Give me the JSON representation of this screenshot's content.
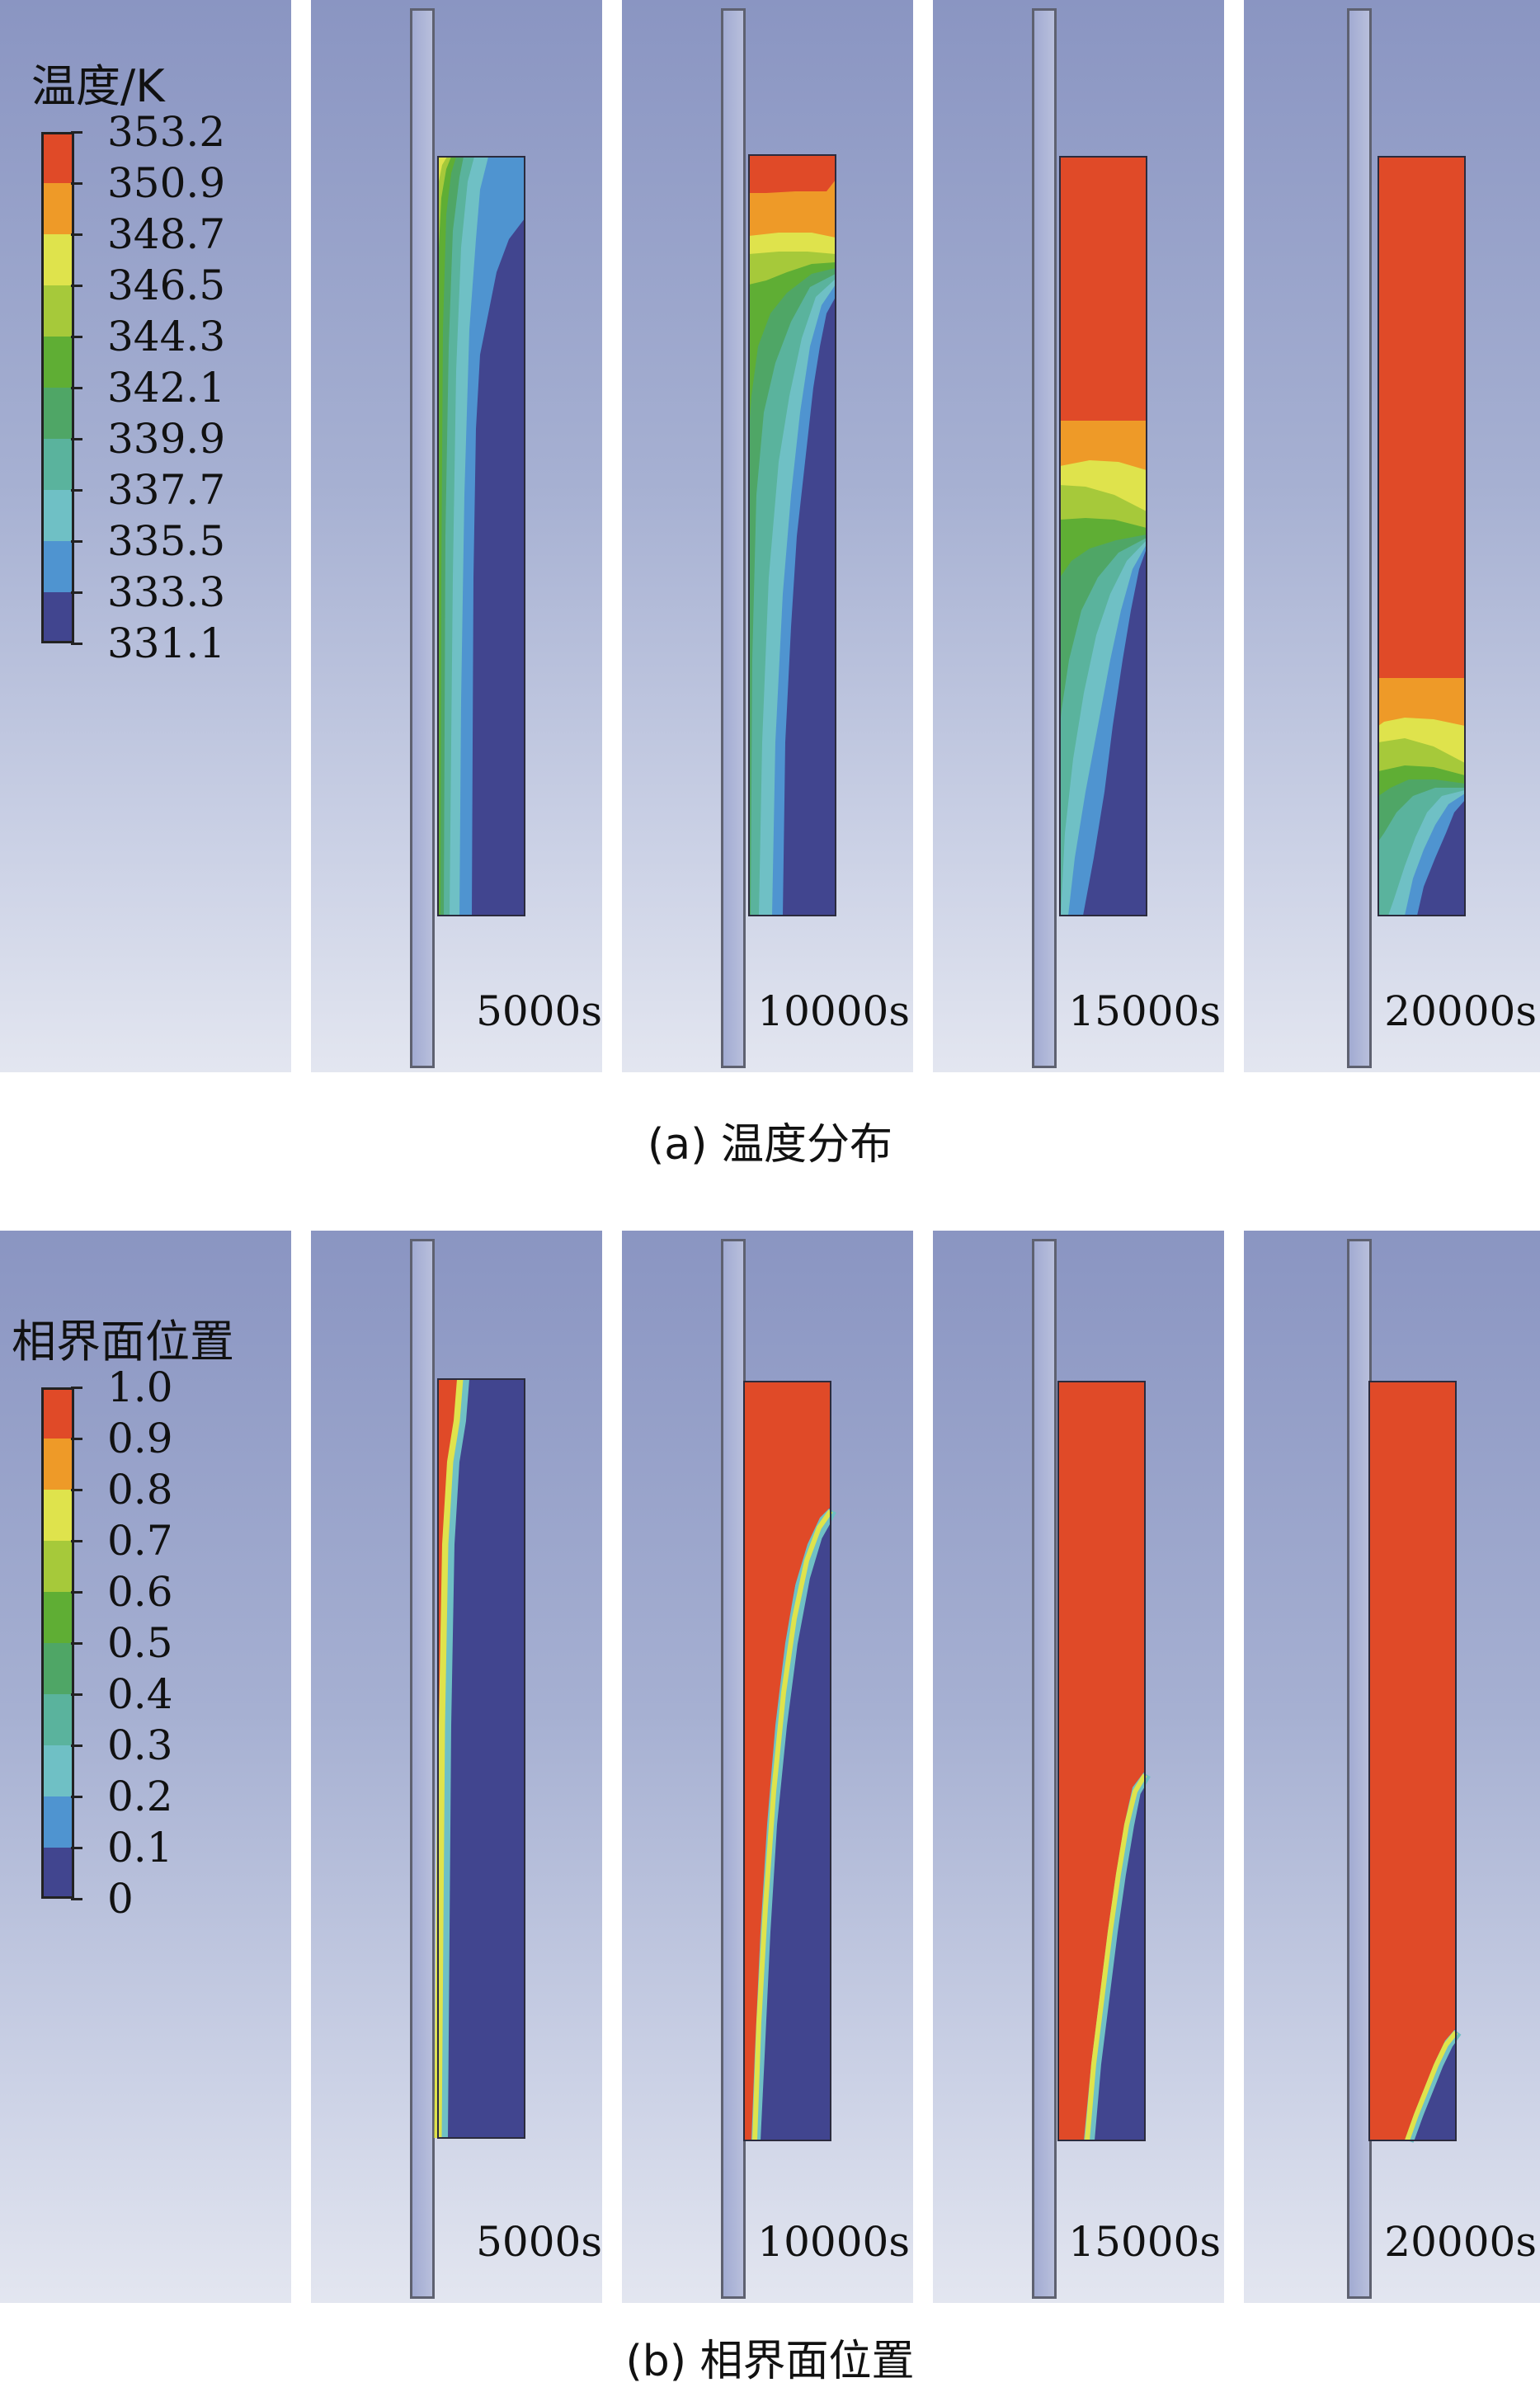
{
  "legend_colors": [
    "#e04a28",
    "#ee9a28",
    "#dfe34c",
    "#a6c93a",
    "#5fae34",
    "#4fa666",
    "#5ab39d",
    "#6fc0c5",
    "#4f94d0",
    "#41458f"
  ],
  "colors": {
    "vessel": "#41458f",
    "pcm": "#e04a28"
  },
  "section_a": {
    "legend_title": "温度/K",
    "legend_labels": [
      "353.2",
      "350.9",
      "348.7",
      "346.5",
      "344.3",
      "342.1",
      "339.9",
      "337.7",
      "335.5",
      "333.3",
      "331.1"
    ],
    "times": [
      "5000s",
      "10000s",
      "15000s",
      "20000s"
    ],
    "caption": "(a)  温度分布"
  },
  "section_b": {
    "legend_title": "相界面位置",
    "legend_labels": [
      "1.0",
      "0.9",
      "0.8",
      "0.7",
      "0.6",
      "0.5",
      "0.4",
      "0.3",
      "0.2",
      "0.1",
      "0"
    ],
    "times": [
      "5000s",
      "10000s",
      "15000s",
      "20000s"
    ],
    "caption": "(b)  相界面位置"
  }
}
